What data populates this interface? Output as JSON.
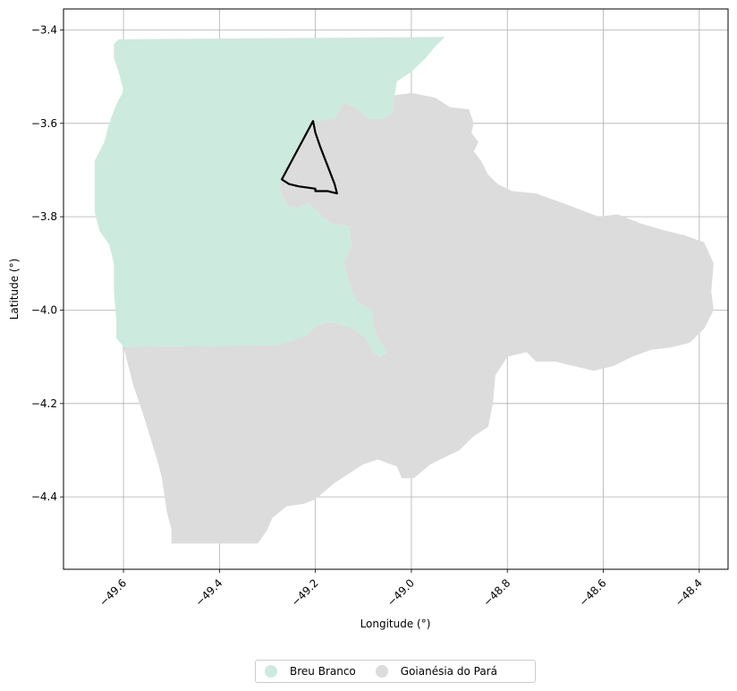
{
  "map": {
    "xlabel": "Longitude (°)",
    "ylabel": "Latitude (°)",
    "xlim": [
      -49.725,
      -48.34
    ],
    "ylim": [
      -4.555,
      -3.355
    ],
    "x_ticks": [
      -49.6,
      -49.4,
      -49.2,
      -49.0,
      -48.8,
      -48.6,
      -48.4
    ],
    "x_tick_labels": [
      "−49.6",
      "−49.4",
      "−49.2",
      "−49.0",
      "−48.8",
      "−48.6",
      "−48.4"
    ],
    "y_ticks": [
      -3.4,
      -3.6,
      -3.8,
      -4.0,
      -4.2,
      -4.4
    ],
    "y_tick_labels": [
      "−3.4",
      "−3.6",
      "−3.8",
      "−4.0",
      "−4.2",
      "−4.4"
    ],
    "grid": true,
    "legend_placement": "bottom-center",
    "regions": [
      {
        "name": "Breu Branco",
        "color": "#cdeade",
        "polygon": [
          [
            -49.61,
            -3.42
          ],
          [
            -48.93,
            -3.415
          ],
          [
            -48.95,
            -3.435
          ],
          [
            -48.97,
            -3.46
          ],
          [
            -49.0,
            -3.49
          ],
          [
            -49.03,
            -3.51
          ],
          [
            -49.035,
            -3.54
          ],
          [
            -49.04,
            -3.58
          ],
          [
            -49.06,
            -3.59
          ],
          [
            -49.09,
            -3.59
          ],
          [
            -49.11,
            -3.57
          ],
          [
            -49.14,
            -3.555
          ],
          [
            -49.16,
            -3.59
          ],
          [
            -49.2,
            -3.595
          ],
          [
            -49.22,
            -3.625
          ],
          [
            -49.24,
            -3.67
          ],
          [
            -49.265,
            -3.71
          ],
          [
            -49.275,
            -3.74
          ],
          [
            -49.26,
            -3.775
          ],
          [
            -49.235,
            -3.78
          ],
          [
            -49.215,
            -3.77
          ],
          [
            -49.2,
            -3.785
          ],
          [
            -49.185,
            -3.8
          ],
          [
            -49.165,
            -3.815
          ],
          [
            -49.13,
            -3.82
          ],
          [
            -49.125,
            -3.865
          ],
          [
            -49.14,
            -3.9
          ],
          [
            -49.13,
            -3.94
          ],
          [
            -49.115,
            -3.98
          ],
          [
            -49.08,
            -4.0
          ],
          [
            -49.08,
            -4.03
          ],
          [
            -49.07,
            -4.06
          ],
          [
            -49.05,
            -4.09
          ],
          [
            -49.065,
            -4.1
          ],
          [
            -49.08,
            -4.09
          ],
          [
            -49.095,
            -4.06
          ],
          [
            -49.12,
            -4.04
          ],
          [
            -49.15,
            -4.03
          ],
          [
            -49.17,
            -4.025
          ],
          [
            -49.2,
            -4.035
          ],
          [
            -49.22,
            -4.055
          ],
          [
            -49.25,
            -4.065
          ],
          [
            -49.28,
            -4.075
          ],
          [
            -49.6,
            -4.078
          ],
          [
            -49.615,
            -4.06
          ],
          [
            -49.615,
            -4.02
          ],
          [
            -49.62,
            -3.96
          ],
          [
            -49.62,
            -3.9
          ],
          [
            -49.63,
            -3.86
          ],
          [
            -49.65,
            -3.83
          ],
          [
            -49.66,
            -3.79
          ],
          [
            -49.66,
            -3.73
          ],
          [
            -49.66,
            -3.68
          ],
          [
            -49.64,
            -3.64
          ],
          [
            -49.63,
            -3.6
          ],
          [
            -49.615,
            -3.56
          ],
          [
            -49.6,
            -3.53
          ],
          [
            -49.61,
            -3.49
          ],
          [
            -49.62,
            -3.46
          ],
          [
            -49.62,
            -3.43
          ]
        ]
      },
      {
        "name": "Goianésia do Pará",
        "color": "#dcdcdc",
        "polygon": [
          [
            -49.16,
            -3.59
          ],
          [
            -49.14,
            -3.555
          ],
          [
            -49.11,
            -3.57
          ],
          [
            -49.09,
            -3.59
          ],
          [
            -49.06,
            -3.59
          ],
          [
            -49.04,
            -3.58
          ],
          [
            -49.035,
            -3.54
          ],
          [
            -49.0,
            -3.535
          ],
          [
            -48.95,
            -3.545
          ],
          [
            -48.92,
            -3.565
          ],
          [
            -48.88,
            -3.57
          ],
          [
            -48.87,
            -3.6
          ],
          [
            -48.875,
            -3.62
          ],
          [
            -48.86,
            -3.64
          ],
          [
            -48.87,
            -3.66
          ],
          [
            -48.855,
            -3.68
          ],
          [
            -48.84,
            -3.71
          ],
          [
            -48.82,
            -3.73
          ],
          [
            -48.79,
            -3.745
          ],
          [
            -48.74,
            -3.75
          ],
          [
            -48.7,
            -3.765
          ],
          [
            -48.66,
            -3.78
          ],
          [
            -48.61,
            -3.8
          ],
          [
            -48.57,
            -3.795
          ],
          [
            -48.52,
            -3.815
          ],
          [
            -48.47,
            -3.83
          ],
          [
            -48.43,
            -3.84
          ],
          [
            -48.39,
            -3.855
          ],
          [
            -48.37,
            -3.9
          ],
          [
            -48.375,
            -3.96
          ],
          [
            -48.37,
            -4.0
          ],
          [
            -48.39,
            -4.04
          ],
          [
            -48.42,
            -4.07
          ],
          [
            -48.46,
            -4.08
          ],
          [
            -48.5,
            -4.085
          ],
          [
            -48.54,
            -4.1
          ],
          [
            -48.58,
            -4.12
          ],
          [
            -48.62,
            -4.13
          ],
          [
            -48.66,
            -4.12
          ],
          [
            -48.7,
            -4.11
          ],
          [
            -48.74,
            -4.11
          ],
          [
            -48.76,
            -4.09
          ],
          [
            -48.8,
            -4.1
          ],
          [
            -48.825,
            -4.14
          ],
          [
            -48.83,
            -4.2
          ],
          [
            -48.84,
            -4.25
          ],
          [
            -48.87,
            -4.27
          ],
          [
            -48.9,
            -4.3
          ],
          [
            -48.93,
            -4.315
          ],
          [
            -48.96,
            -4.33
          ],
          [
            -48.995,
            -4.36
          ],
          [
            -49.02,
            -4.36
          ],
          [
            -49.03,
            -4.335
          ],
          [
            -49.07,
            -4.32
          ],
          [
            -49.1,
            -4.33
          ],
          [
            -49.13,
            -4.35
          ],
          [
            -49.16,
            -4.37
          ],
          [
            -49.2,
            -4.405
          ],
          [
            -49.225,
            -4.415
          ],
          [
            -49.26,
            -4.42
          ],
          [
            -49.29,
            -4.445
          ],
          [
            -49.3,
            -4.47
          ],
          [
            -49.32,
            -4.5
          ],
          [
            -49.5,
            -4.5
          ],
          [
            -49.5,
            -4.47
          ],
          [
            -49.51,
            -4.43
          ],
          [
            -49.515,
            -4.395
          ],
          [
            -49.52,
            -4.36
          ],
          [
            -49.53,
            -4.32
          ],
          [
            -49.545,
            -4.27
          ],
          [
            -49.56,
            -4.22
          ],
          [
            -49.58,
            -4.16
          ],
          [
            -49.6,
            -4.078
          ],
          [
            -49.28,
            -4.075
          ],
          [
            -49.25,
            -4.065
          ],
          [
            -49.22,
            -4.055
          ],
          [
            -49.2,
            -4.035
          ],
          [
            -49.17,
            -4.025
          ],
          [
            -49.15,
            -4.03
          ],
          [
            -49.12,
            -4.04
          ],
          [
            -49.095,
            -4.06
          ],
          [
            -49.08,
            -4.09
          ],
          [
            -49.065,
            -4.1
          ],
          [
            -49.05,
            -4.09
          ],
          [
            -49.07,
            -4.06
          ],
          [
            -49.08,
            -4.03
          ],
          [
            -49.08,
            -4.0
          ],
          [
            -49.115,
            -3.98
          ],
          [
            -49.13,
            -3.94
          ],
          [
            -49.14,
            -3.9
          ],
          [
            -49.125,
            -3.865
          ],
          [
            -49.13,
            -3.82
          ],
          [
            -49.165,
            -3.815
          ],
          [
            -49.185,
            -3.8
          ],
          [
            -49.2,
            -3.785
          ],
          [
            -49.215,
            -3.77
          ],
          [
            -49.235,
            -3.78
          ],
          [
            -49.26,
            -3.775
          ],
          [
            -49.275,
            -3.74
          ],
          [
            -49.265,
            -3.71
          ],
          [
            -49.24,
            -3.67
          ],
          [
            -49.22,
            -3.625
          ],
          [
            -49.2,
            -3.595
          ]
        ]
      }
    ],
    "outline": {
      "color": "#000000",
      "polygon": [
        [
          -49.205,
          -3.595
        ],
        [
          -49.27,
          -3.72
        ],
        [
          -49.255,
          -3.73
        ],
        [
          -49.235,
          -3.735
        ],
        [
          -49.2,
          -3.74
        ],
        [
          -49.2,
          -3.745
        ],
        [
          -49.175,
          -3.745
        ],
        [
          -49.155,
          -3.75
        ],
        [
          -49.16,
          -3.73
        ],
        [
          -49.175,
          -3.69
        ],
        [
          -49.19,
          -3.65
        ],
        [
          -49.2,
          -3.62
        ]
      ]
    }
  },
  "legend": {
    "items": [
      {
        "label": "Breu Branco",
        "color": "#cdeade"
      },
      {
        "label": "Goianésia do Pará",
        "color": "#dcdcdc"
      }
    ]
  }
}
